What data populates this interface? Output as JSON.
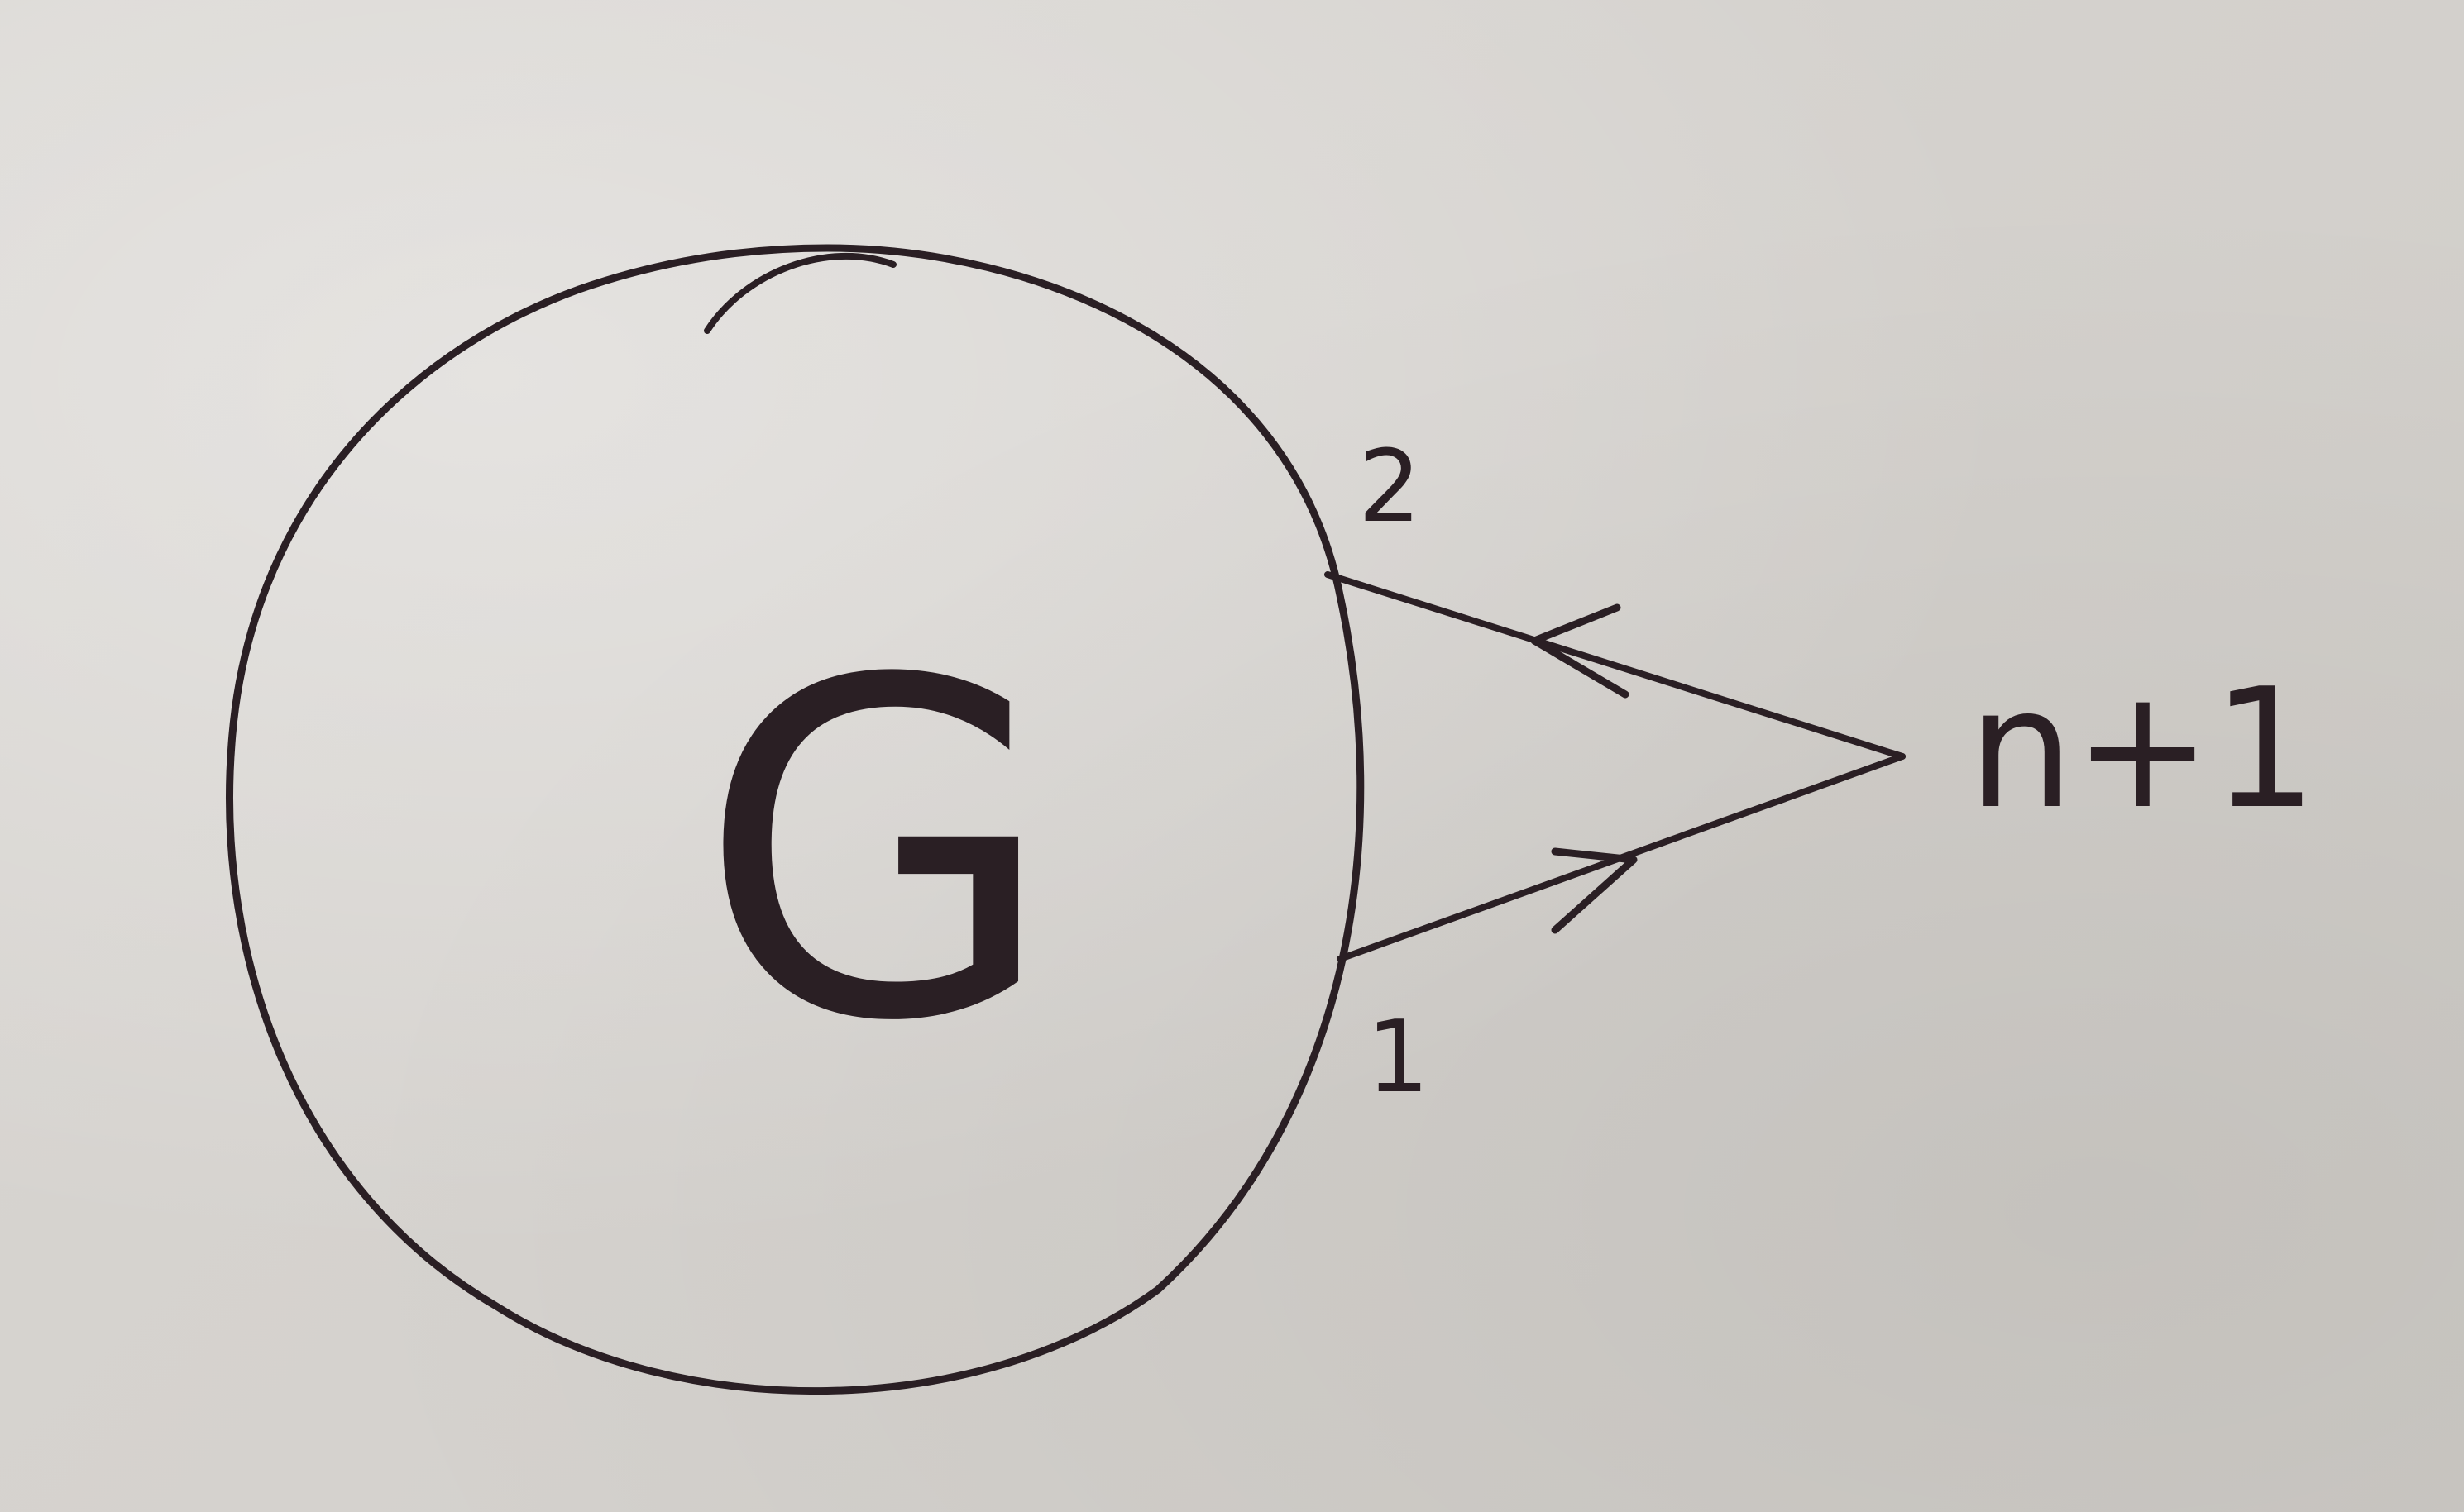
{
  "diagram": {
    "graph_label": "G",
    "vertex_label_top": "2",
    "vertex_label_bottom": "1",
    "new_vertex_label": "n+1",
    "edges": [
      {
        "from": "n+1",
        "to": "2",
        "directed": true
      },
      {
        "from": "1",
        "to": "n+1",
        "directed": true
      }
    ],
    "ink_color": "#2a1f24",
    "paper_color": "#d6d3cf"
  }
}
